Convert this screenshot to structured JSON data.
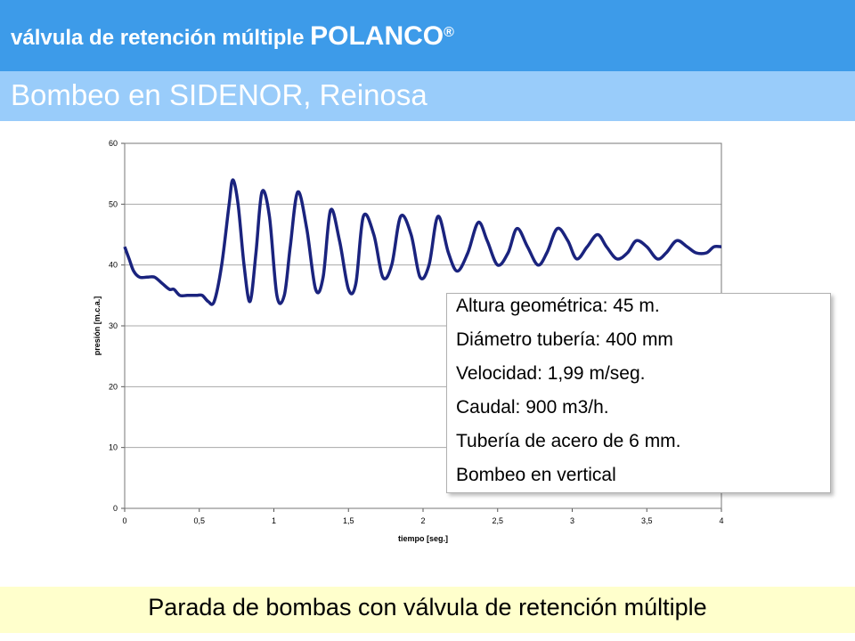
{
  "header": {
    "title_prefix": "válvula de retención múltiple",
    "brand": "POLANCO",
    "registered": "®",
    "subtitle": "Bombeo en SIDENOR, Reinosa"
  },
  "info": {
    "altura": "Altura geométrica:  45 m.",
    "diametro": "Diámetro tubería:   400 mm",
    "velocidad": "Velocidad:             1,99 m/seg.",
    "caudal": "Caudal:                900 m3/h.",
    "tuberia": "Tubería de acero de 6 mm.",
    "bombeo": "Bombeo en vertical"
  },
  "footer": {
    "caption": "Parada de bombas con válvula de retención múltiple"
  },
  "colors": {
    "header_top": "#3d9be9",
    "header_sub": "#99ccfa",
    "footer_bg": "#ffffcc",
    "series": "#1a237e"
  },
  "chart_data": {
    "type": "line",
    "xlabel": "tiempo [seg.]",
    "ylabel": "presión [m.c.a.]",
    "xlim": [
      0,
      4
    ],
    "ylim": [
      0,
      60
    ],
    "xticks": [
      0,
      0.5,
      1,
      1.5,
      2,
      2.5,
      3,
      3.5,
      4
    ],
    "xtick_labels": [
      "0",
      "0,5",
      "1",
      "1,5",
      "2",
      "2,5",
      "3",
      "3,5",
      "4"
    ],
    "yticks": [
      0,
      10,
      20,
      30,
      40,
      50,
      60
    ],
    "ytick_labels": [
      "0",
      "10",
      "20",
      "30",
      "40",
      "50",
      "60"
    ],
    "grid": true,
    "series": [
      {
        "x": [
          0,
          0.03,
          0.06,
          0.1,
          0.15,
          0.2,
          0.25,
          0.3,
          0.33,
          0.37,
          0.42,
          0.48,
          0.52,
          0.56,
          0.6,
          0.65,
          0.7,
          0.725,
          0.76,
          0.8,
          0.84,
          0.88,
          0.92,
          0.97,
          1.02,
          1.07,
          1.11,
          1.16,
          1.22,
          1.28,
          1.33,
          1.38,
          1.44,
          1.5,
          1.55,
          1.6,
          1.67,
          1.73,
          1.79,
          1.85,
          1.92,
          1.98,
          2.04,
          2.1,
          2.17,
          2.23,
          2.3,
          2.37,
          2.43,
          2.5,
          2.57,
          2.63,
          2.7,
          2.77,
          2.83,
          2.9,
          2.97,
          3.03,
          3.1,
          3.17,
          3.23,
          3.3,
          3.37,
          3.43,
          3.5,
          3.57,
          3.63,
          3.7,
          3.77,
          3.83,
          3.9,
          3.95,
          4.0
        ],
        "y": [
          43,
          41,
          39,
          38,
          38,
          38,
          37,
          36,
          36,
          35,
          35,
          35,
          35,
          34,
          34,
          40,
          50,
          54,
          50,
          40,
          34,
          42,
          52,
          48,
          35,
          35,
          43,
          52,
          46,
          36,
          38,
          49,
          44,
          36,
          37,
          48,
          45,
          38,
          40,
          48,
          45,
          38,
          40,
          48,
          42,
          39,
          42,
          47,
          44,
          40,
          42,
          46,
          43,
          40,
          42,
          46,
          44,
          41,
          43,
          45,
          43,
          41,
          42,
          44,
          43,
          41,
          42,
          44,
          43,
          42,
          42,
          43,
          43
        ]
      }
    ]
  }
}
